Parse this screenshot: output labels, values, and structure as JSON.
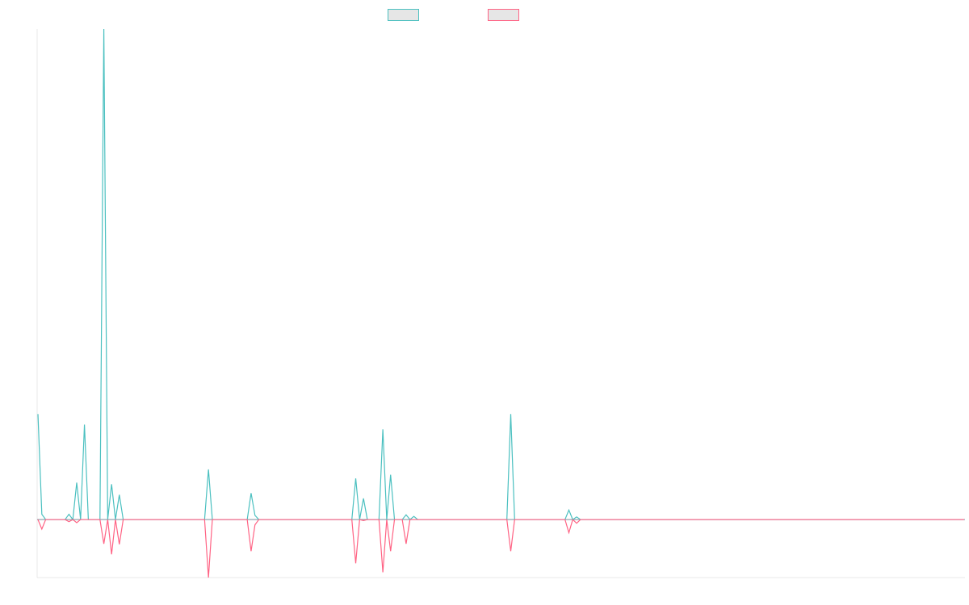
{
  "chart_data": {
    "type": "line",
    "title": "",
    "xlabel": "",
    "ylabel": "",
    "grid": false,
    "legend_position": "top",
    "x_count": 240,
    "ylim": [
      -0.11,
      0.93
    ],
    "series": [
      {
        "color": "#4bc0c0",
        "legend_fill": "#e6e6e6",
        "points": [
          [
            0,
            0.2
          ],
          [
            1,
            0.01
          ],
          [
            2,
            0.0
          ],
          [
            7,
            0.0
          ],
          [
            8,
            0.01
          ],
          [
            9,
            0.0
          ],
          [
            10,
            0.07
          ],
          [
            11,
            0.0
          ],
          [
            12,
            0.18
          ],
          [
            13,
            0.0
          ],
          [
            16,
            0.0
          ],
          [
            17,
            0.93
          ],
          [
            18,
            0.0
          ],
          [
            19,
            0.067
          ],
          [
            20,
            0.0
          ],
          [
            21,
            0.047
          ],
          [
            22,
            0.0
          ],
          [
            43,
            0.0
          ],
          [
            44,
            0.095
          ],
          [
            45,
            0.0
          ],
          [
            54,
            0.0
          ],
          [
            55,
            0.05
          ],
          [
            56,
            0.008
          ],
          [
            57,
            0.0
          ],
          [
            81,
            0.0
          ],
          [
            82,
            0.078
          ],
          [
            83,
            0.0
          ],
          [
            84,
            0.04
          ],
          [
            85,
            0.0
          ],
          [
            88,
            0.0
          ],
          [
            89,
            0.171
          ],
          [
            90,
            0.0
          ],
          [
            91,
            0.085
          ],
          [
            92,
            0.0
          ],
          [
            94,
            0.0
          ],
          [
            95,
            0.009
          ],
          [
            96,
            0.0
          ],
          [
            97,
            0.006
          ],
          [
            98,
            0.0
          ],
          [
            121,
            0.0
          ],
          [
            122,
            0.2
          ],
          [
            123,
            0.0
          ],
          [
            136,
            0.0
          ],
          [
            137,
            0.018
          ],
          [
            138,
            0.0
          ],
          [
            139,
            0.005
          ],
          [
            140,
            0.0
          ],
          [
            239,
            0.0
          ]
        ]
      },
      {
        "color": "#ff6384",
        "legend_fill": "#e6e6e6",
        "points": [
          [
            0,
            0.0
          ],
          [
            1,
            -0.018
          ],
          [
            2,
            0.0
          ],
          [
            7,
            0.0
          ],
          [
            8,
            -0.004
          ],
          [
            9,
            0.0
          ],
          [
            10,
            -0.006
          ],
          [
            11,
            0.0
          ],
          [
            16,
            0.0
          ],
          [
            17,
            -0.046
          ],
          [
            18,
            0.0
          ],
          [
            19,
            -0.066
          ],
          [
            20,
            0.0
          ],
          [
            21,
            -0.047
          ],
          [
            22,
            0.0
          ],
          [
            43,
            0.0
          ],
          [
            44,
            -0.11
          ],
          [
            45,
            0.0
          ],
          [
            54,
            0.0
          ],
          [
            55,
            -0.06
          ],
          [
            56,
            -0.01
          ],
          [
            57,
            0.0
          ],
          [
            81,
            0.0
          ],
          [
            82,
            -0.083
          ],
          [
            83,
            0.0
          ],
          [
            84,
            -0.002
          ],
          [
            85,
            0.0
          ],
          [
            88,
            0.0
          ],
          [
            89,
            -0.1
          ],
          [
            90,
            0.0
          ],
          [
            91,
            -0.06
          ],
          [
            92,
            0.0
          ],
          [
            94,
            0.0
          ],
          [
            95,
            -0.046
          ],
          [
            96,
            0.0
          ],
          [
            121,
            0.0
          ],
          [
            122,
            -0.06
          ],
          [
            123,
            0.0
          ],
          [
            136,
            0.0
          ],
          [
            137,
            -0.025
          ],
          [
            138,
            0.0
          ],
          [
            139,
            -0.007
          ],
          [
            140,
            0.0
          ],
          [
            239,
            0.0
          ]
        ]
      }
    ]
  }
}
